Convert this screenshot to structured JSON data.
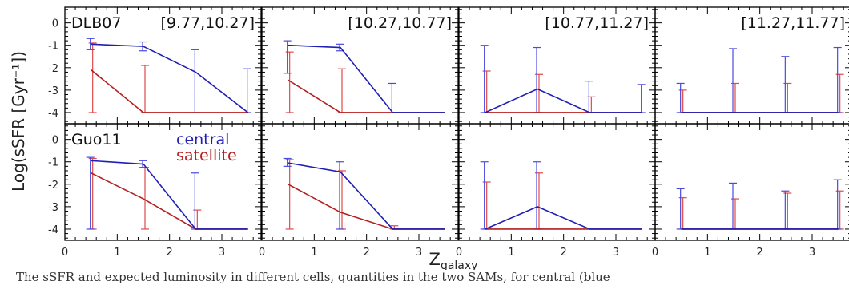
{
  "chart_data": {
    "type": "line",
    "ylabel": "Log(sSFR [Gyr⁻¹])",
    "xlabel": "Z_galaxy",
    "xlabel_main": "Z",
    "xlabel_sub": "galaxy",
    "xlim": [
      0,
      3.75
    ],
    "ylim": [
      -4.5,
      0.7
    ],
    "xticks": [
      0,
      1,
      2,
      3
    ],
    "yticks": [
      0,
      -1,
      -2,
      -3,
      -4
    ],
    "x": [
      0.5,
      1.5,
      2.5,
      3.5
    ],
    "colors": {
      "central": "#1f1fb4",
      "satellite": "#b41f1f",
      "errbar_central": "#4a4ae0",
      "errbar_satellite": "#e04a4a"
    },
    "rows": [
      "DLB07",
      "Guo11"
    ],
    "columns": [
      "[9.77,10.27]",
      "[10.27,10.77]",
      "[10.77,11.27]",
      "[11.27,11.77]"
    ],
    "legend": [
      "central",
      "satellite"
    ],
    "panels": [
      {
        "row": "DLB07",
        "column": "[9.77,10.27]",
        "central": {
          "y": [
            -0.95,
            -1.05,
            -2.2,
            -4.0
          ],
          "err_hi": [
            -0.7,
            -0.85,
            -1.2,
            -2.05
          ],
          "err_lo": [
            -1.2,
            -1.25,
            -4.0,
            -4.0
          ]
        },
        "satellite": {
          "y": [
            -2.1,
            -4.0,
            -4.0,
            -4.0
          ],
          "err_hi": [
            -0.9,
            -1.9,
            null,
            null
          ],
          "err_lo": [
            -4.0,
            -4.0,
            null,
            null
          ]
        }
      },
      {
        "row": "DLB07",
        "column": "[10.27,10.77]",
        "central": {
          "y": [
            -1.0,
            -1.1,
            -4.0,
            -4.0
          ],
          "err_hi": [
            -0.8,
            -0.95,
            -2.7,
            null
          ],
          "err_lo": [
            -2.25,
            -1.25,
            -4.0,
            null
          ]
        },
        "satellite": {
          "y": [
            -2.55,
            -4.0,
            -4.0,
            -4.0
          ],
          "err_hi": [
            -1.3,
            -2.05,
            null,
            null
          ],
          "err_lo": [
            -4.0,
            -4.0,
            null,
            null
          ]
        }
      },
      {
        "row": "DLB07",
        "column": "[10.77,11.27]",
        "central": {
          "y": [
            -4.0,
            -2.95,
            -4.0,
            -4.0
          ],
          "err_hi": [
            -1.0,
            -1.1,
            -2.6,
            -2.75
          ],
          "err_lo": [
            -4.0,
            -4.0,
            -4.0,
            -4.0
          ]
        },
        "satellite": {
          "y": [
            -4.0,
            -4.0,
            -4.0,
            -4.0
          ],
          "err_hi": [
            -2.15,
            -2.3,
            -3.3,
            null
          ],
          "err_lo": [
            -4.0,
            -4.0,
            -4.0,
            null
          ]
        }
      },
      {
        "row": "DLB07",
        "column": "[11.27,11.77]",
        "central": {
          "y": [
            -4.0,
            -4.0,
            -4.0,
            -4.0
          ],
          "err_hi": [
            -2.7,
            -1.15,
            -1.5,
            -1.1
          ],
          "err_lo": [
            -4.0,
            -4.0,
            -4.0,
            -4.0
          ]
        },
        "satellite": {
          "y": [
            -4.0,
            -4.0,
            -4.0,
            -4.0
          ],
          "err_hi": [
            -3.0,
            -2.7,
            -2.7,
            -2.3
          ],
          "err_lo": [
            -4.0,
            -4.0,
            -4.0,
            -4.0
          ]
        }
      },
      {
        "row": "Guo11",
        "column": "[9.77,10.27]",
        "central": {
          "y": [
            -0.95,
            -1.1,
            -4.0,
            -4.0
          ],
          "err_hi": [
            -0.8,
            -0.95,
            -1.5,
            null
          ],
          "err_lo": [
            -4.0,
            -1.25,
            -4.0,
            null
          ]
        },
        "satellite": {
          "y": [
            -1.5,
            -2.65,
            -4.0,
            -4.0
          ],
          "err_hi": [
            -0.85,
            -1.25,
            -3.15,
            null
          ],
          "err_lo": [
            -4.0,
            -4.0,
            -4.0,
            null
          ]
        }
      },
      {
        "row": "Guo11",
        "column": "[10.27,10.77]",
        "central": {
          "y": [
            -1.05,
            -1.45,
            -4.0,
            -4.0
          ],
          "err_hi": [
            -0.85,
            -1.0,
            null,
            null
          ],
          "err_lo": [
            -1.2,
            -4.0,
            null,
            null
          ]
        },
        "satellite": {
          "y": [
            -2.0,
            -3.25,
            -4.0,
            -4.0
          ],
          "err_hi": [
            -0.9,
            -1.4,
            -3.85,
            null
          ],
          "err_lo": [
            -4.0,
            -4.0,
            -4.0,
            null
          ]
        }
      },
      {
        "row": "Guo11",
        "column": "[10.77,11.27]",
        "central": {
          "y": [
            -4.0,
            -3.0,
            -4.0,
            -4.0
          ],
          "err_hi": [
            -1.0,
            -1.0,
            null,
            null
          ],
          "err_lo": [
            -4.0,
            -4.0,
            null,
            null
          ]
        },
        "satellite": {
          "y": [
            -4.0,
            -4.0,
            -4.0,
            -4.0
          ],
          "err_hi": [
            -1.9,
            -1.5,
            null,
            null
          ],
          "err_lo": [
            -4.0,
            -4.0,
            null,
            null
          ]
        }
      },
      {
        "row": "Guo11",
        "column": "[11.27,11.77]",
        "central": {
          "y": [
            -4.0,
            -4.0,
            -4.0,
            -4.0
          ],
          "err_hi": [
            -2.2,
            -1.95,
            -2.3,
            -1.8
          ],
          "err_lo": [
            -4.0,
            -4.0,
            -4.0,
            -4.0
          ]
        },
        "satellite": {
          "y": [
            -4.0,
            -4.0,
            -4.0,
            -4.0
          ],
          "err_hi": [
            -2.6,
            -2.65,
            -2.4,
            -2.3
          ],
          "err_lo": [
            -4.0,
            -4.0,
            -4.0,
            -4.0
          ]
        }
      }
    ]
  },
  "caption": "The sSFR and expected luminosity in different cells, quantities in the two SAMs, for central (blue"
}
